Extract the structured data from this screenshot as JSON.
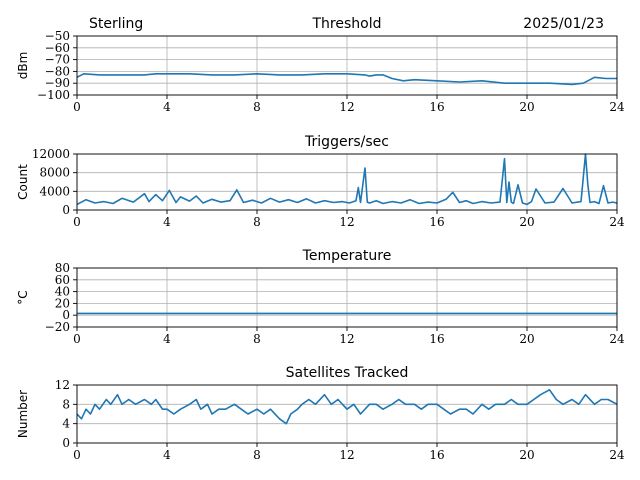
{
  "header": {
    "station": "Sterling",
    "date": "2025/01/23"
  },
  "colors": {
    "series": "#1f77b4",
    "grid": "#b0b0b0",
    "axis": "#000000"
  },
  "chart_data": [
    {
      "type": "line",
      "title": "Threshold",
      "xlabel": "",
      "ylabel": "dBm",
      "xlim": [
        0,
        24
      ],
      "ylim": [
        -100,
        -50
      ],
      "xticks": [
        0,
        4,
        8,
        12,
        16,
        20,
        24
      ],
      "yticks": [
        -100,
        -90,
        -80,
        -70,
        -60,
        -50
      ],
      "ytick_labels": [
        "−100",
        "−90",
        "−80",
        "−70",
        "−60",
        "−50"
      ],
      "grid": true,
      "series": [
        {
          "x": [
            0,
            0.3,
            1,
            2,
            3,
            3.5,
            4,
            5,
            6,
            7,
            8,
            9,
            10,
            11,
            12,
            12.8,
            13,
            13.3,
            13.6,
            14,
            14.5,
            15,
            16,
            17,
            18,
            19,
            20,
            21,
            22,
            22.5,
            22.8,
            23,
            23.5,
            24
          ],
          "y": [
            -85,
            -82,
            -83,
            -83,
            -83,
            -82,
            -82,
            -82,
            -83,
            -83,
            -82,
            -83,
            -83,
            -82,
            -82,
            -83,
            -84,
            -83,
            -83,
            -86,
            -88,
            -87,
            -88,
            -89,
            -88,
            -90,
            -90,
            -90,
            -91,
            -90,
            -87,
            -85,
            -86,
            -86
          ]
        }
      ]
    },
    {
      "type": "line",
      "title": "Triggers/sec",
      "xlabel": "",
      "ylabel": "Count",
      "xlim": [
        0,
        24
      ],
      "ylim": [
        0,
        12000
      ],
      "xticks": [
        0,
        4,
        8,
        12,
        16,
        20,
        24
      ],
      "yticks": [
        0,
        4000,
        8000,
        12000
      ],
      "ytick_labels": [
        "0",
        "4000",
        "8000",
        "12000"
      ],
      "grid": true,
      "series": [
        {
          "x": [
            0,
            0.4,
            0.8,
            1.2,
            1.6,
            2.0,
            2.5,
            3.0,
            3.2,
            3.5,
            3.8,
            4.1,
            4.4,
            4.6,
            5.0,
            5.3,
            5.6,
            6.0,
            6.4,
            6.8,
            7.1,
            7.4,
            7.8,
            8.2,
            8.6,
            9.0,
            9.4,
            9.8,
            10.2,
            10.6,
            11.0,
            11.4,
            11.8,
            12.1,
            12.4,
            12.5,
            12.6,
            12.8,
            12.9,
            13.0,
            13.3,
            13.6,
            14.0,
            14.4,
            14.8,
            15.2,
            15.6,
            16.0,
            16.4,
            16.7,
            17.0,
            17.3,
            17.6,
            18.0,
            18.4,
            18.8,
            19.0,
            19.1,
            19.2,
            19.3,
            19.4,
            19.6,
            19.8,
            20.0,
            20.2,
            20.4,
            20.8,
            21.2,
            21.6,
            22.0,
            22.4,
            22.6,
            22.7,
            22.8,
            23.0,
            23.2,
            23.4,
            23.6,
            23.8,
            24.0
          ],
          "y": [
            1200,
            2200,
            1500,
            1800,
            1400,
            2500,
            1700,
            3500,
            1800,
            3300,
            2000,
            4200,
            1600,
            2800,
            1900,
            3000,
            1500,
            2300,
            1700,
            2000,
            4300,
            1600,
            2100,
            1500,
            2500,
            1700,
            2200,
            1600,
            2400,
            1500,
            2000,
            1600,
            1800,
            1500,
            2000,
            4800,
            1600,
            9000,
            1700,
            1500,
            2000,
            1400,
            1800,
            1500,
            2200,
            1400,
            1700,
            1500,
            2300,
            3800,
            1600,
            2000,
            1400,
            1800,
            1500,
            1700,
            11000,
            1600,
            6000,
            1700,
            1400,
            5400,
            1500,
            1200,
            1800,
            4500,
            1500,
            1700,
            4600,
            1500,
            1800,
            12000,
            5500,
            1600,
            1800,
            1400,
            5200,
            1500,
            1700,
            1500
          ]
        }
      ]
    },
    {
      "type": "line",
      "title": "Temperature",
      "xlabel": "",
      "ylabel": "°C",
      "xlim": [
        0,
        24
      ],
      "ylim": [
        -20,
        80
      ],
      "xticks": [
        0,
        4,
        8,
        12,
        16,
        20,
        24
      ],
      "yticks": [
        -20,
        0,
        20,
        40,
        60,
        80
      ],
      "ytick_labels": [
        "−20",
        "0",
        "20",
        "40",
        "60",
        "80"
      ],
      "grid": true,
      "series": [
        {
          "x": [
            0,
            24
          ],
          "y": [
            3,
            3
          ]
        }
      ]
    },
    {
      "type": "line",
      "title": "Satellites Tracked",
      "xlabel": "",
      "ylabel": "Number",
      "xlim": [
        0,
        24
      ],
      "ylim": [
        0,
        12
      ],
      "xticks": [
        0,
        4,
        8,
        12,
        16,
        20,
        24
      ],
      "yticks": [
        0,
        4,
        8,
        12
      ],
      "ytick_labels": [
        "0",
        "4",
        "8",
        "12"
      ],
      "grid": true,
      "series": [
        {
          "x": [
            0,
            0.2,
            0.4,
            0.6,
            0.8,
            1.0,
            1.3,
            1.5,
            1.8,
            2.0,
            2.3,
            2.6,
            3.0,
            3.3,
            3.5,
            3.8,
            4.0,
            4.3,
            4.6,
            5.0,
            5.3,
            5.5,
            5.8,
            6.0,
            6.3,
            6.6,
            7.0,
            7.3,
            7.6,
            8.0,
            8.3,
            8.6,
            9.0,
            9.3,
            9.5,
            9.8,
            10.0,
            10.3,
            10.6,
            11.0,
            11.3,
            11.6,
            12.0,
            12.3,
            12.6,
            13.0,
            13.3,
            13.6,
            14.0,
            14.3,
            14.6,
            15.0,
            15.3,
            15.6,
            16.0,
            16.3,
            16.6,
            17.0,
            17.3,
            17.6,
            18.0,
            18.3,
            18.6,
            19.0,
            19.3,
            19.6,
            20.0,
            20.3,
            20.6,
            21.0,
            21.3,
            21.6,
            22.0,
            22.3,
            22.6,
            23.0,
            23.3,
            23.6,
            24.0
          ],
          "y": [
            6,
            5,
            7,
            6,
            8,
            7,
            9,
            8,
            10,
            8,
            9,
            8,
            9,
            8,
            9,
            7,
            7,
            6,
            7,
            8,
            9,
            7,
            8,
            6,
            7,
            7,
            8,
            7,
            6,
            7,
            6,
            7,
            5,
            4,
            6,
            7,
            8,
            9,
            8,
            10,
            8,
            9,
            7,
            8,
            6,
            8,
            8,
            7,
            8,
            9,
            8,
            8,
            7,
            8,
            8,
            7,
            6,
            7,
            7,
            6,
            8,
            7,
            8,
            8,
            9,
            8,
            8,
            9,
            10,
            11,
            9,
            8,
            9,
            8,
            10,
            8,
            9,
            9,
            8
          ]
        }
      ]
    }
  ]
}
